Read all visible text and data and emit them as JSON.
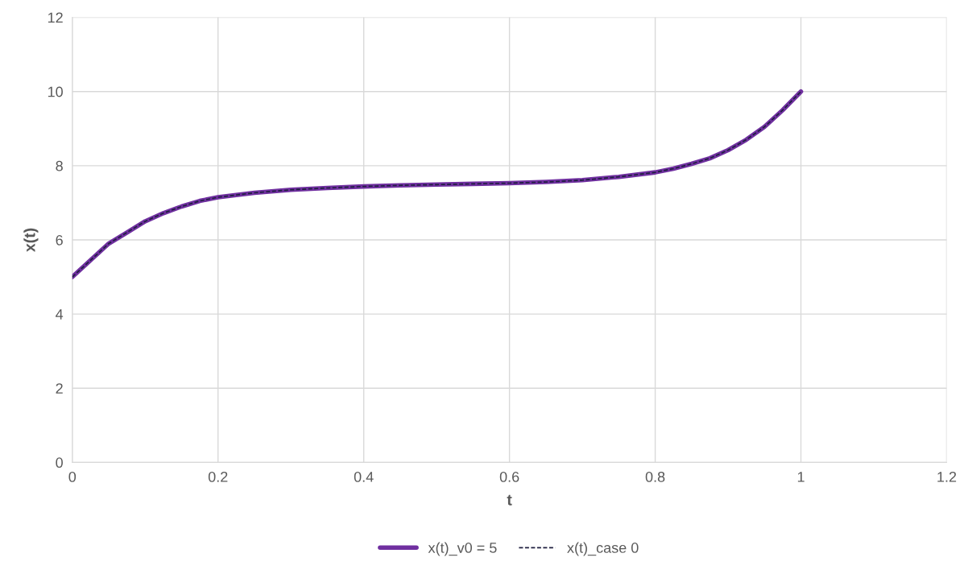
{
  "chart_data": {
    "type": "line",
    "xlabel": "t",
    "ylabel": "x(t)",
    "xlim": [
      0,
      1.2
    ],
    "xticks": [
      0,
      0.2,
      0.4,
      0.6,
      0.8,
      1,
      1.2
    ],
    "ylim": [
      0,
      12
    ],
    "yticks": [
      0,
      2,
      4,
      6,
      8,
      10,
      12
    ],
    "grid": true,
    "legend": "bottom",
    "marker": "none",
    "x": [
      0,
      0.025,
      0.05,
      0.075,
      0.1,
      0.125,
      0.15,
      0.175,
      0.2,
      0.25,
      0.3,
      0.35,
      0.4,
      0.45,
      0.5,
      0.55,
      0.6,
      0.65,
      0.7,
      0.75,
      0.8,
      0.825,
      0.85,
      0.875,
      0.9,
      0.925,
      0.95,
      0.975,
      1.0
    ],
    "series": [
      {
        "name": "x(t)_v0 = 5",
        "color": "#7030a0",
        "line_style": "solid",
        "values": [
          5.0,
          5.45,
          5.9,
          6.2,
          6.5,
          6.72,
          6.9,
          7.05,
          7.15,
          7.27,
          7.35,
          7.4,
          7.44,
          7.47,
          7.49,
          7.51,
          7.53,
          7.56,
          7.61,
          7.7,
          7.82,
          7.92,
          8.05,
          8.2,
          8.42,
          8.7,
          9.05,
          9.5,
          10.0
        ]
      },
      {
        "name": "x(t)_case 0",
        "color": "#1f1f3f",
        "line_style": "dashed",
        "values": [
          5.0,
          5.45,
          5.9,
          6.2,
          6.5,
          6.72,
          6.9,
          7.05,
          7.15,
          7.27,
          7.35,
          7.4,
          7.44,
          7.47,
          7.49,
          7.51,
          7.53,
          7.56,
          7.61,
          7.7,
          7.82,
          7.92,
          8.05,
          8.2,
          8.42,
          8.7,
          9.05,
          9.5,
          10.0
        ]
      }
    ]
  }
}
